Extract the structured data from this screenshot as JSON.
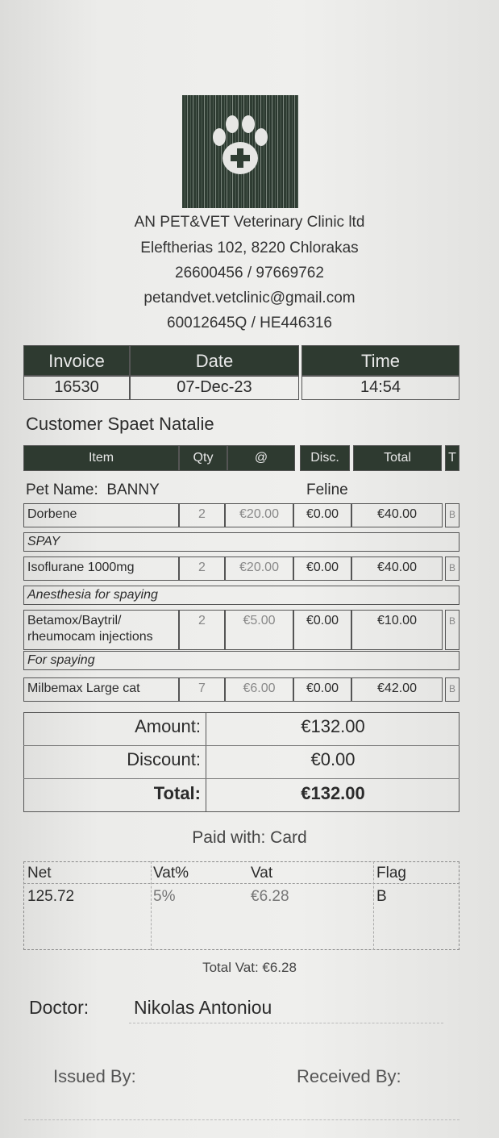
{
  "clinic": {
    "name": "AN PET&VET Veterinary Clinic ltd",
    "address": "Eleftherias 102, 8220 Chlorakas",
    "phones": "26600456 / 97669762",
    "email": "petandvet.vetclinic@gmail.com",
    "reg": "60012645Q / HE446316",
    "logo": "paw-cross-icon"
  },
  "invoice": {
    "labels": {
      "invoice": "Invoice",
      "date": "Date",
      "time": "Time"
    },
    "number": "16530",
    "date": "07-Dec-23",
    "time": "14:54"
  },
  "customer": {
    "label": "Customer",
    "name": "Spaet Natalie"
  },
  "items_header": {
    "item": "Item",
    "qty": "Qty",
    "at": "@",
    "disc": "Disc.",
    "total": "Total",
    "t": "T"
  },
  "pet": {
    "label": "Pet Name:",
    "name": "BANNY",
    "species": "Feline"
  },
  "items": [
    {
      "name": "Dorbene",
      "qty": "2",
      "price": "€20.00",
      "disc": "€0.00",
      "total": "€40.00",
      "flag": "B",
      "note": "SPAY"
    },
    {
      "name": "Isoflurane 1000mg",
      "qty": "2",
      "price": "€20.00",
      "disc": "€0.00",
      "total": "€40.00",
      "flag": "B",
      "note": "Anesthesia for spaying"
    },
    {
      "name": "Betamox/Baytril/",
      "name2": "rheumocam injections",
      "qty": "2",
      "price": "€5.00",
      "disc": "€0.00",
      "total": "€10.00",
      "flag": "B",
      "note": "For spaying"
    },
    {
      "name": "Milbemax Large cat",
      "qty": "7",
      "price": "€6.00",
      "disc": "€0.00",
      "total": "€42.00",
      "flag": "B"
    }
  ],
  "totals": {
    "amount_label": "Amount:",
    "amount": "€132.00",
    "discount_label": "Discount:",
    "discount": "€0.00",
    "total_label": "Total:",
    "total": "€132.00"
  },
  "payment": "Paid with: Card",
  "vat": {
    "headers": [
      "Net",
      "Vat%",
      "Vat",
      "Flag"
    ],
    "row": [
      "125.72",
      "5%",
      "€6.28",
      "B"
    ],
    "total": "Total Vat: €6.28"
  },
  "doctor": {
    "label": "Doctor:",
    "name": "Nikolas Antoniou"
  },
  "footer": {
    "issued": "Issued By:",
    "received": "Received By:"
  }
}
